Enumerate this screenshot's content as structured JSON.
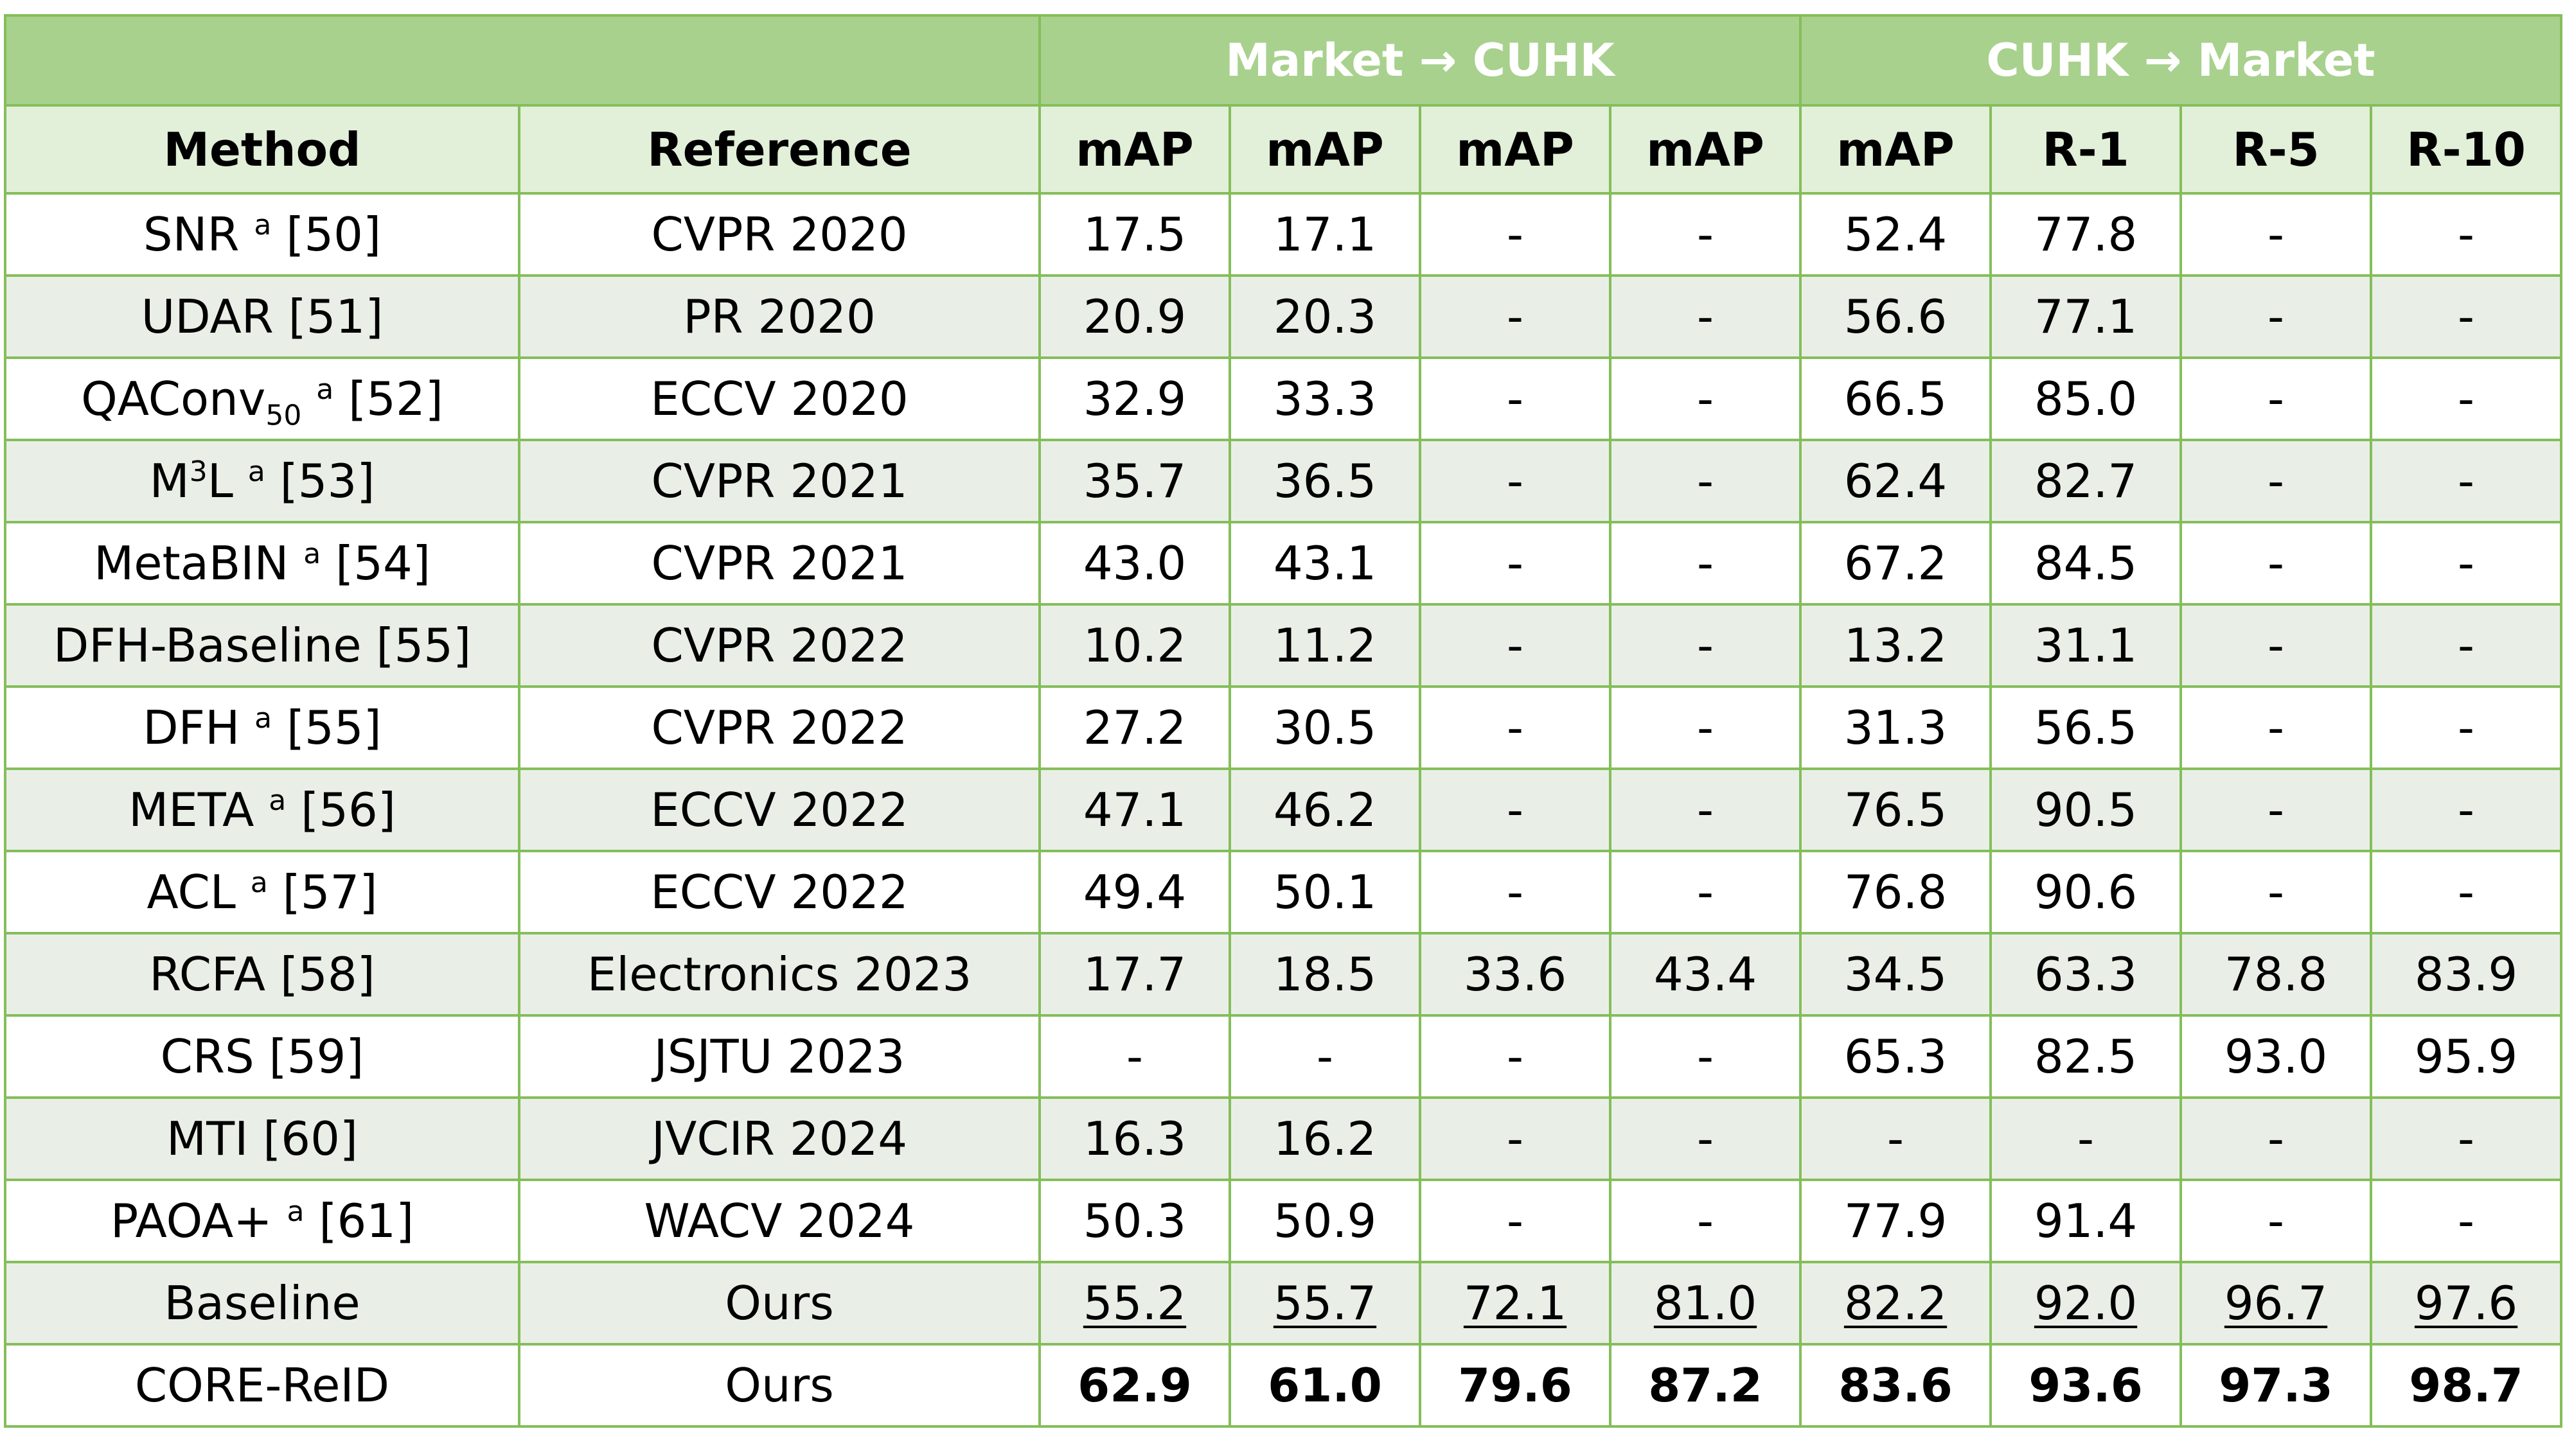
{
  "table": {
    "group_headers": [
      {
        "label": "",
        "span": 2
      },
      {
        "label": "Market → CUHK",
        "span": 4
      },
      {
        "label": "CUHK → Market",
        "span": 4
      }
    ],
    "columns": [
      "Method",
      "Reference",
      "mAP",
      "mAP",
      "mAP",
      "mAP",
      "mAP",
      "R-1",
      "R-5",
      "R-10"
    ],
    "rows": [
      {
        "method": "SNR",
        "sup": "a",
        "sub": "",
        "cite": "[50]",
        "reference": "CVPR 2020",
        "values": [
          "17.5",
          "17.1",
          "-",
          "-",
          "52.4",
          "77.8",
          "-",
          "-"
        ],
        "style": "normal"
      },
      {
        "method": "UDAR",
        "sup": "",
        "sub": "",
        "cite": "[51]",
        "reference": "PR 2020",
        "values": [
          "20.9",
          "20.3",
          "-",
          "-",
          "56.6",
          "77.1",
          "-",
          "-"
        ],
        "style": "normal"
      },
      {
        "method": "QAConv",
        "sup": "a",
        "sub": "50",
        "cite": "[52]",
        "reference": "ECCV 2020",
        "values": [
          "32.9",
          "33.3",
          "-",
          "-",
          "66.5",
          "85.0",
          "-",
          "-"
        ],
        "style": "normal"
      },
      {
        "method": "M",
        "sup": "a",
        "sub": "",
        "cite": "[53]",
        "reference": "CVPR 2021",
        "values": [
          "35.7",
          "36.5",
          "-",
          "-",
          "62.4",
          "82.7",
          "-",
          "-"
        ],
        "style": "normal",
        "m3": true
      },
      {
        "method": "MetaBIN",
        "sup": "a",
        "sub": "",
        "cite": "[54]",
        "reference": "CVPR 2021",
        "values": [
          "43.0",
          "43.1",
          "-",
          "-",
          "67.2",
          "84.5",
          "-",
          "-"
        ],
        "style": "normal"
      },
      {
        "method": "DFH-Baseline",
        "sup": "",
        "sub": "",
        "cite": "[55]",
        "reference": "CVPR 2022",
        "values": [
          "10.2",
          "11.2",
          "-",
          "-",
          "13.2",
          "31.1",
          "-",
          "-"
        ],
        "style": "normal"
      },
      {
        "method": "DFH",
        "sup": "a",
        "sub": "",
        "cite": "[55]",
        "reference": "CVPR 2022",
        "values": [
          "27.2",
          "30.5",
          "-",
          "-",
          "31.3",
          "56.5",
          "-",
          "-"
        ],
        "style": "normal"
      },
      {
        "method": "META",
        "sup": "a",
        "sub": "",
        "cite": "[56]",
        "reference": "ECCV 2022",
        "values": [
          "47.1",
          "46.2",
          "-",
          "-",
          "76.5",
          "90.5",
          "-",
          "-"
        ],
        "style": "normal"
      },
      {
        "method": "ACL",
        "sup": "a",
        "sub": "",
        "cite": "[57]",
        "reference": "ECCV 2022",
        "values": [
          "49.4",
          "50.1",
          "-",
          "-",
          "76.8",
          "90.6",
          "-",
          "-"
        ],
        "style": "normal"
      },
      {
        "method": "RCFA",
        "sup": "",
        "sub": "",
        "cite": "[58]",
        "reference": "Electronics 2023",
        "values": [
          "17.7",
          "18.5",
          "33.6",
          "43.4",
          "34.5",
          "63.3",
          "78.8",
          "83.9"
        ],
        "style": "normal"
      },
      {
        "method": "CRS",
        "sup": "",
        "sub": "",
        "cite": "[59]",
        "reference": "JSJTU 2023",
        "values": [
          "-",
          "-",
          "-",
          "-",
          "65.3",
          "82.5",
          "93.0",
          "95.9"
        ],
        "style": "normal"
      },
      {
        "method": "MTI",
        "sup": "",
        "sub": "",
        "cite": "[60]",
        "reference": "JVCIR 2024",
        "values": [
          "16.3",
          "16.2",
          "-",
          "-",
          "-",
          "-",
          "-",
          "-"
        ],
        "style": "normal"
      },
      {
        "method": "PAOA+",
        "sup": "a",
        "sub": "",
        "cite": "[61]",
        "reference": "WACV 2024",
        "values": [
          "50.3",
          "50.9",
          "-",
          "-",
          "77.9",
          "91.4",
          "-",
          "-"
        ],
        "style": "normal"
      },
      {
        "method": "Baseline",
        "sup": "",
        "sub": "",
        "cite": "",
        "reference": "Ours",
        "values": [
          "55.2",
          "55.7",
          "72.1",
          "81.0",
          "82.2",
          "92.0",
          "96.7",
          "97.6"
        ],
        "style": "underline"
      },
      {
        "method": "CORE-ReID",
        "sup": "",
        "sub": "",
        "cite": "",
        "reference": "Ours",
        "values": [
          "62.9",
          "61.0",
          "79.6",
          "87.2",
          "83.6",
          "93.6",
          "97.3",
          "98.7"
        ],
        "style": "bold"
      }
    ]
  },
  "m3_sup": "3",
  "m3_suffix": "L"
}
